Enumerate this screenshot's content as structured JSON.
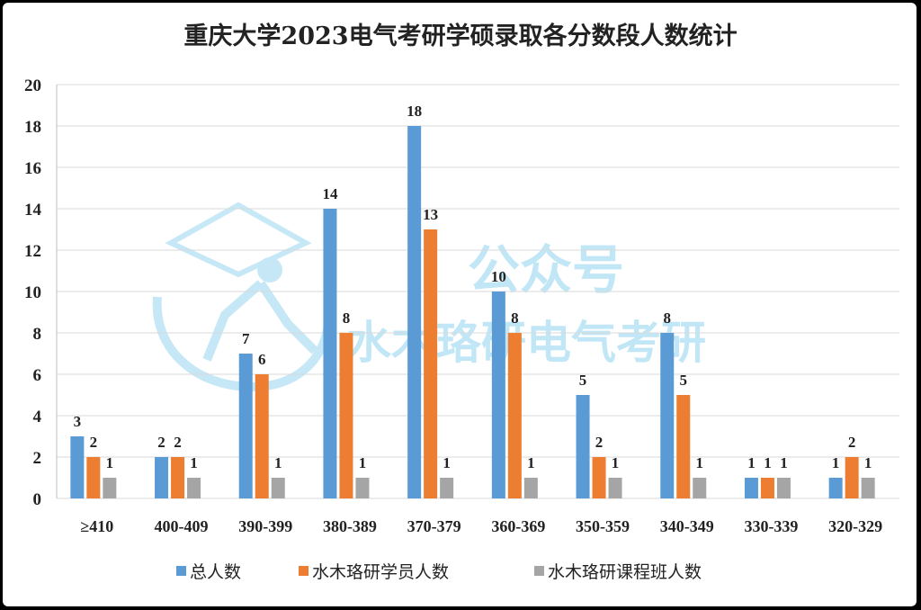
{
  "chart_data": {
    "type": "bar",
    "title": "重庆大学2023电气考研学硕录取各分数段人数统计",
    "categories": [
      "≥410",
      "400-409",
      "390-399",
      "380-389",
      "370-379",
      "360-369",
      "350-359",
      "340-349",
      "330-339",
      "320-329"
    ],
    "series": [
      {
        "name": "总人数",
        "color": "#5b9bd5",
        "values": [
          3,
          2,
          7,
          14,
          18,
          10,
          5,
          8,
          1,
          1
        ]
      },
      {
        "name": "水木珞研学员人数",
        "color": "#ed7d31",
        "values": [
          2,
          2,
          6,
          8,
          13,
          8,
          2,
          5,
          1,
          2
        ]
      },
      {
        "name": "水木珞研课程班人数",
        "color": "#a5a5a5",
        "values": [
          1,
          1,
          1,
          1,
          1,
          1,
          1,
          1,
          1,
          1
        ]
      }
    ],
    "ylim": [
      0,
      20
    ],
    "yticks": [
      0,
      2,
      4,
      6,
      8,
      10,
      12,
      14,
      16,
      18,
      20
    ],
    "grid": true,
    "legend_position": "bottom",
    "data_labels": true
  },
  "watermark": {
    "line1": "公众号",
    "line2": "水木珞研电气考研"
  }
}
